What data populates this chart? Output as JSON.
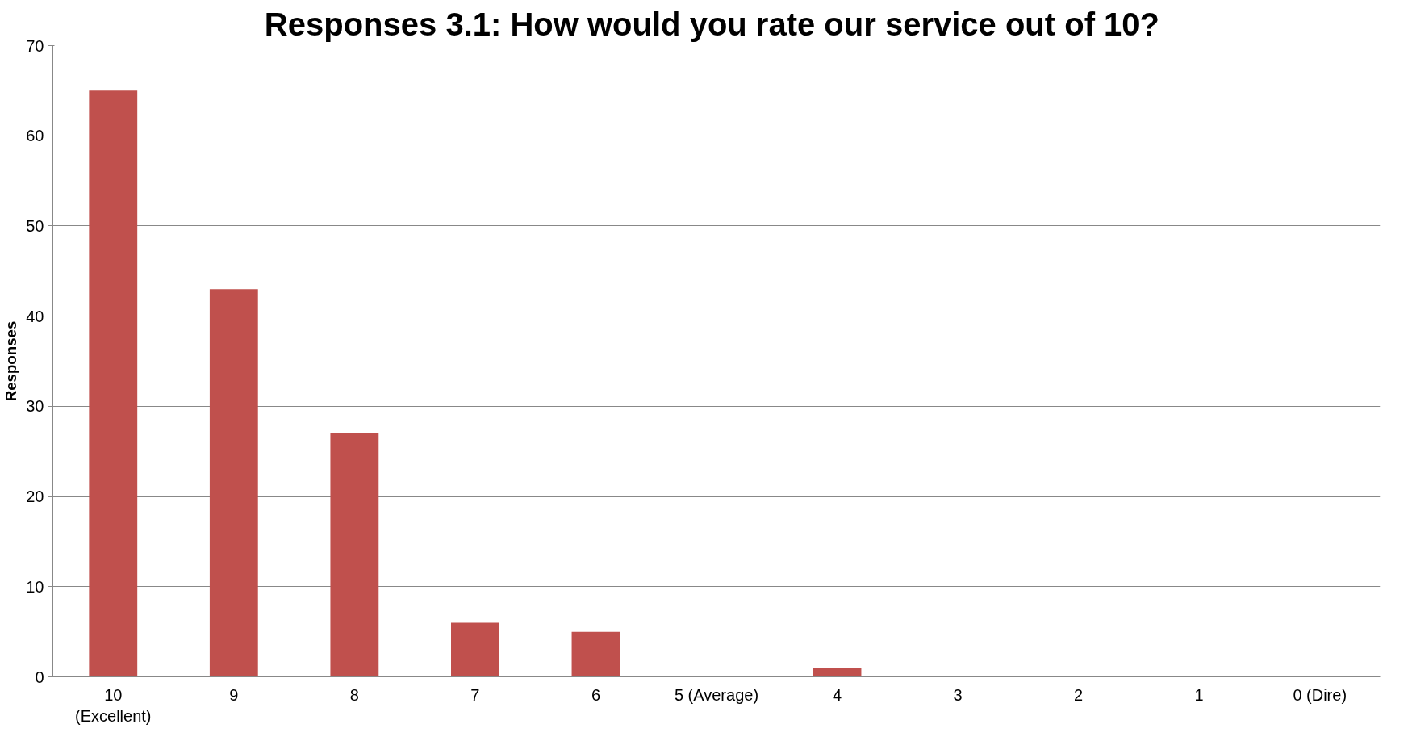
{
  "chart_data": {
    "type": "bar",
    "title": "Responses 3.1:  How would you rate our service out of 10?",
    "ylabel": "Responses",
    "categories": [
      "10\n(Excellent)",
      "9",
      "8",
      "7",
      "6",
      "5 (Average)",
      "4",
      "3",
      "2",
      "1",
      "0 (Dire)"
    ],
    "values": [
      65,
      43,
      27,
      6,
      5,
      0,
      1,
      0,
      0,
      0,
      0
    ],
    "color": "#c0504d",
    "ylim": [
      0,
      70
    ],
    "yticks": [
      0,
      10,
      20,
      30,
      40,
      50,
      60,
      70
    ],
    "grid": "y"
  }
}
